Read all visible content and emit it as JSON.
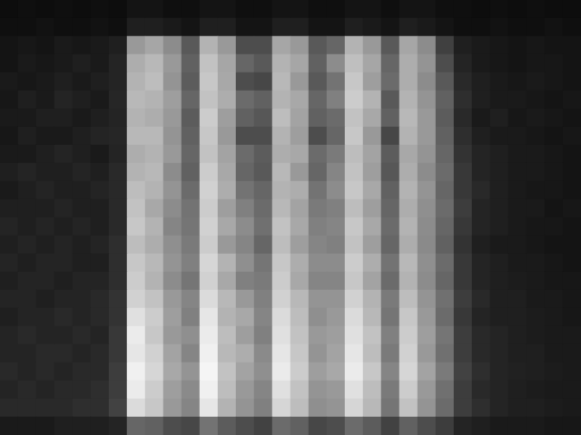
{
  "chart_data": {
    "type": "heatmap",
    "tick_labels": false,
    "grid": false,
    "color": [
      "#000000",
      "#ffffff"
    ],
    "value_range": [
      0,
      100
    ],
    "cells": [
      [
        5,
        6,
        5,
        6,
        5,
        6,
        5,
        8,
        8,
        6,
        6,
        8,
        8,
        6,
        6,
        8,
        8,
        6,
        6,
        8,
        8,
        6,
        8,
        8,
        6,
        6,
        5,
        6,
        5,
        6,
        5,
        5
      ],
      [
        6,
        6,
        7,
        6,
        6,
        7,
        6,
        12,
        12,
        10,
        8,
        12,
        12,
        8,
        8,
        12,
        12,
        8,
        8,
        12,
        10,
        8,
        12,
        10,
        8,
        6,
        6,
        7,
        6,
        6,
        7,
        6
      ],
      [
        8,
        9,
        8,
        10,
        9,
        10,
        12,
        60,
        65,
        55,
        35,
        70,
        60,
        30,
        30,
        65,
        60,
        35,
        40,
        70,
        60,
        35,
        65,
        55,
        25,
        12,
        10,
        9,
        8,
        9,
        8,
        8
      ],
      [
        8,
        10,
        9,
        10,
        12,
        10,
        14,
        68,
        72,
        60,
        38,
        76,
        65,
        40,
        35,
        70,
        65,
        38,
        55,
        75,
        65,
        40,
        68,
        58,
        30,
        14,
        10,
        9,
        8,
        9,
        9,
        8
      ],
      [
        10,
        9,
        10,
        12,
        10,
        12,
        14,
        70,
        74,
        58,
        36,
        78,
        66,
        30,
        28,
        72,
        60,
        35,
        45,
        78,
        62,
        42,
        68,
        55,
        35,
        16,
        12,
        10,
        9,
        10,
        9,
        8
      ],
      [
        9,
        12,
        10,
        14,
        12,
        10,
        15,
        72,
        70,
        62,
        40,
        76,
        68,
        42,
        38,
        70,
        66,
        40,
        50,
        80,
        70,
        35,
        70,
        58,
        38,
        18,
        12,
        10,
        10,
        9,
        8,
        9
      ],
      [
        10,
        10,
        12,
        12,
        10,
        12,
        14,
        70,
        68,
        60,
        36,
        80,
        62,
        38,
        34,
        74,
        64,
        38,
        42,
        76,
        66,
        38,
        72,
        60,
        36,
        16,
        10,
        12,
        9,
        10,
        9,
        8
      ],
      [
        9,
        12,
        10,
        10,
        12,
        14,
        15,
        72,
        72,
        58,
        38,
        78,
        60,
        30,
        30,
        70,
        62,
        30,
        40,
        78,
        60,
        28,
        70,
        60,
        38,
        18,
        12,
        10,
        10,
        9,
        8,
        9
      ],
      [
        10,
        10,
        12,
        14,
        12,
        10,
        14,
        68,
        70,
        60,
        40,
        76,
        64,
        42,
        36,
        68,
        66,
        42,
        48,
        74,
        64,
        36,
        66,
        58,
        40,
        20,
        14,
        12,
        10,
        10,
        9,
        8
      ],
      [
        12,
        14,
        12,
        12,
        14,
        12,
        16,
        70,
        72,
        55,
        38,
        80,
        66,
        40,
        35,
        72,
        60,
        40,
        52,
        76,
        62,
        34,
        68,
        55,
        42,
        22,
        14,
        12,
        10,
        10,
        9,
        8
      ],
      [
        10,
        12,
        14,
        12,
        12,
        14,
        16,
        74,
        70,
        58,
        42,
        82,
        68,
        45,
        40,
        70,
        68,
        45,
        55,
        78,
        66,
        38,
        70,
        58,
        40,
        22,
        16,
        12,
        10,
        9,
        9,
        8
      ],
      [
        12,
        12,
        12,
        14,
        12,
        12,
        16,
        76,
        66,
        55,
        45,
        80,
        62,
        50,
        42,
        72,
        64,
        48,
        50,
        74,
        62,
        40,
        68,
        56,
        42,
        24,
        14,
        12,
        10,
        10,
        8,
        9
      ],
      [
        14,
        12,
        14,
        12,
        14,
        12,
        16,
        78,
        70,
        52,
        46,
        82,
        66,
        55,
        44,
        76,
        66,
        50,
        52,
        78,
        66,
        42,
        70,
        55,
        40,
        22,
        14,
        12,
        10,
        9,
        9,
        8
      ],
      [
        12,
        14,
        12,
        14,
        12,
        14,
        18,
        74,
        68,
        56,
        48,
        80,
        60,
        52,
        40,
        74,
        62,
        52,
        50,
        76,
        62,
        40,
        68,
        54,
        38,
        20,
        12,
        10,
        10,
        9,
        8,
        8
      ],
      [
        14,
        12,
        14,
        14,
        12,
        12,
        18,
        78,
        72,
        58,
        50,
        84,
        70,
        56,
        46,
        78,
        68,
        55,
        55,
        80,
        68,
        45,
        72,
        56,
        42,
        22,
        14,
        12,
        10,
        10,
        9,
        8
      ],
      [
        12,
        14,
        14,
        12,
        14,
        14,
        18,
        80,
        70,
        55,
        46,
        82,
        66,
        50,
        48,
        80,
        66,
        52,
        52,
        78,
        64,
        42,
        70,
        55,
        40,
        22,
        14,
        12,
        11,
        10,
        9,
        9
      ],
      [
        14,
        14,
        12,
        14,
        14,
        16,
        20,
        82,
        76,
        60,
        52,
        86,
        72,
        60,
        50,
        82,
        72,
        58,
        58,
        82,
        70,
        48,
        74,
        58,
        44,
        24,
        16,
        12,
        12,
        10,
        10,
        9
      ],
      [
        12,
        14,
        14,
        16,
        14,
        16,
        20,
        88,
        80,
        62,
        50,
        90,
        70,
        66,
        52,
        86,
        74,
        56,
        60,
        86,
        72,
        46,
        78,
        60,
        42,
        22,
        14,
        12,
        12,
        11,
        10,
        9
      ],
      [
        14,
        16,
        14,
        14,
        16,
        14,
        22,
        92,
        78,
        60,
        56,
        92,
        74,
        62,
        50,
        88,
        76,
        60,
        62,
        88,
        76,
        50,
        80,
        62,
        46,
        24,
        16,
        14,
        12,
        11,
        10,
        10
      ],
      [
        14,
        14,
        16,
        16,
        14,
        16,
        22,
        90,
        82,
        64,
        52,
        94,
        72,
        68,
        54,
        90,
        78,
        58,
        64,
        90,
        74,
        48,
        82,
        60,
        44,
        24,
        16,
        14,
        12,
        12,
        10,
        10
      ],
      [
        16,
        14,
        16,
        14,
        16,
        16,
        24,
        94,
        84,
        66,
        58,
        96,
        76,
        64,
        56,
        92,
        80,
        62,
        66,
        92,
        78,
        52,
        84,
        64,
        48,
        26,
        18,
        14,
        13,
        12,
        11,
        10
      ],
      [
        14,
        16,
        14,
        16,
        16,
        18,
        24,
        92,
        80,
        62,
        54,
        94,
        74,
        60,
        52,
        88,
        76,
        58,
        60,
        88,
        74,
        48,
        80,
        60,
        44,
        24,
        16,
        14,
        12,
        11,
        10,
        10
      ],
      [
        16,
        16,
        16,
        16,
        18,
        18,
        26,
        86,
        78,
        60,
        52,
        90,
        70,
        58,
        50,
        84,
        74,
        56,
        58,
        84,
        72,
        46,
        76,
        58,
        42,
        24,
        18,
        14,
        12,
        12,
        11,
        10
      ],
      [
        10,
        10,
        10,
        12,
        12,
        12,
        14,
        40,
        38,
        30,
        28,
        45,
        36,
        30,
        26,
        42,
        38,
        28,
        30,
        42,
        36,
        26,
        38,
        30,
        24,
        14,
        12,
        10,
        10,
        10,
        9,
        9
      ]
    ]
  }
}
